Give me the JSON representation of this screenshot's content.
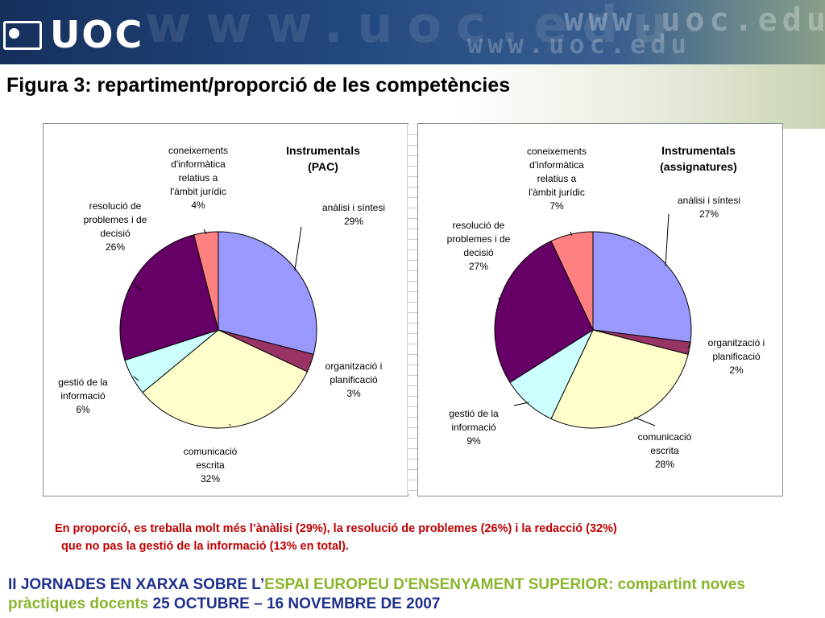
{
  "header": {
    "logo_text": "UOC",
    "watermark_text": "www.uoc.edu"
  },
  "slide_title": "Figura 3: repartiment/proporció de les competències",
  "colors": {
    "analisi": "#9999ff",
    "organitzacio": "#993366",
    "comunicacio": "#ffffcc",
    "gestio": "#ccffff",
    "resolucio": "#660066",
    "coneixements": "#ff8080",
    "note_red": "#c00000",
    "footer_blue": "#1f2f8c",
    "footer_green": "#8ab52d"
  },
  "chart_data": [
    {
      "type": "pie",
      "title": [
        "Instrumentals",
        "(PAC)"
      ],
      "slices": [
        {
          "key": "analisi",
          "label": [
            "anàlisi i síntesi"
          ],
          "value": 29,
          "value_label": "29%"
        },
        {
          "key": "organitzacio",
          "label": [
            "organització i",
            "planificació"
          ],
          "value": 3,
          "value_label": "3%"
        },
        {
          "key": "comunicacio",
          "label": [
            "comunicació",
            "escrita"
          ],
          "value": 32,
          "value_label": "32%"
        },
        {
          "key": "gestio",
          "label": [
            "gestió de la",
            "informació"
          ],
          "value": 6,
          "value_label": "6%"
        },
        {
          "key": "resolucio",
          "label": [
            "resolució de",
            "problemes i de",
            "decisió"
          ],
          "value": 26,
          "value_label": "26%"
        },
        {
          "key": "coneixements",
          "label": [
            "coneixements",
            "d'informàtica",
            "relatius a",
            "l'àmbit jurídic"
          ],
          "value": 4,
          "value_label": "4%"
        }
      ]
    },
    {
      "type": "pie",
      "title": [
        "Instrumentals",
        "(assignatures)"
      ],
      "slices": [
        {
          "key": "analisi",
          "label": [
            "anàlisi i síntesi"
          ],
          "value": 27,
          "value_label": "27%"
        },
        {
          "key": "organitzacio",
          "label": [
            "organització i",
            "planificació"
          ],
          "value": 2,
          "value_label": "2%"
        },
        {
          "key": "comunicacio",
          "label": [
            "comunicació",
            "escrita"
          ],
          "value": 28,
          "value_label": "28%"
        },
        {
          "key": "gestio",
          "label": [
            "gestió de la",
            "informació"
          ],
          "value": 9,
          "value_label": "9%"
        },
        {
          "key": "resolucio",
          "label": [
            "resolució de",
            "problemes i de",
            "decisió"
          ],
          "value": 27,
          "value_label": "27%"
        },
        {
          "key": "coneixements",
          "label": [
            "coneixements",
            "d'informàtica",
            "relatius a",
            "l'àmbit jurídic"
          ],
          "value": 7,
          "value_label": "7%"
        }
      ]
    }
  ],
  "note": {
    "line1": "En proporció, es treballa molt més l’ànàlisi (29%), la resolució de problemes (26%) i la redacció (32%)",
    "line2": "que no pas la gestió de la informació (13% en total)."
  },
  "footer": {
    "part1": "II JORNADES EN XARXA SOBRE L’",
    "part2": "ESPAI EUROPEU D'ENSENYAMENT SUPERIOR: compartint noves",
    "part3": "pràctiques docents ",
    "part4": "25 OCTUBRE – 16 NOVEMBRE DE 2007"
  }
}
